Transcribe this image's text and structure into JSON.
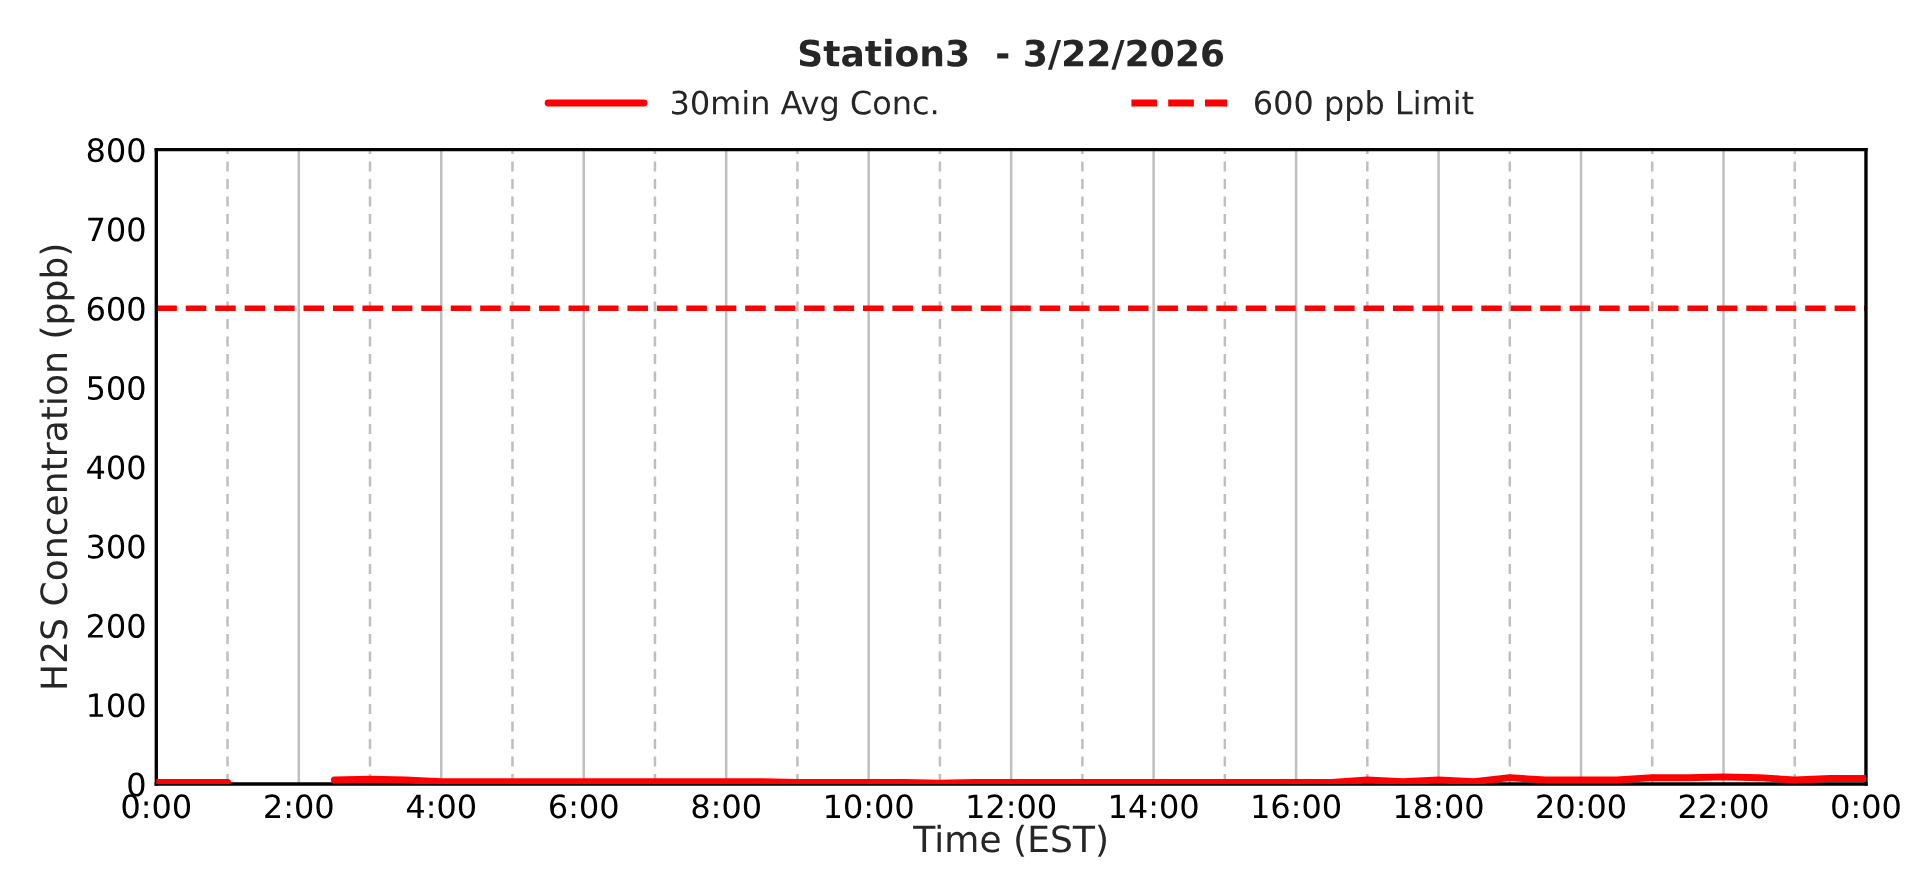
{
  "chart_data": {
    "type": "line",
    "title": "Station3  - 3/22/2026",
    "xlabel": "Time (EST)",
    "ylabel": "H2S Concentration (ppb)",
    "series": [
      {
        "name": "30min Avg Conc.",
        "color": "#ff0000",
        "x": [
          0,
          0.5,
          1,
          1.5,
          2,
          2.5,
          3,
          3.5,
          4,
          4.5,
          5,
          5.5,
          6,
          6.5,
          7,
          7.5,
          8,
          8.5,
          9,
          9.5,
          10,
          10.5,
          11,
          11.5,
          12,
          12.5,
          13,
          13.5,
          14,
          14.5,
          15,
          15.5,
          16,
          16.5,
          17,
          17.5,
          18,
          18.5,
          19,
          19.5,
          20,
          20.5,
          21,
          21.5,
          22,
          22.5,
          23,
          23.5,
          24
        ],
        "values": [
          2,
          2,
          2,
          null,
          null,
          5,
          6,
          5,
          3,
          3,
          3,
          3,
          3,
          3,
          3,
          3,
          3,
          3,
          2,
          2,
          2,
          2,
          1,
          2,
          2,
          2,
          2,
          2,
          2,
          2,
          2,
          2,
          2,
          2,
          5,
          3,
          5,
          3,
          8,
          5,
          5,
          5,
          8,
          8,
          9,
          8,
          5,
          7,
          7
        ]
      }
    ],
    "ref_lines": [
      {
        "axis": "y",
        "value": 600,
        "label": "600 ppb Limit",
        "color": "#ff0000",
        "line_style": "dashed"
      }
    ],
    "xlim": [
      0,
      24
    ],
    "xticks": [
      {
        "value": 0,
        "label": "0:00"
      },
      {
        "value": 1,
        "label": null
      },
      {
        "value": 2,
        "label": "2:00"
      },
      {
        "value": 3,
        "label": null
      },
      {
        "value": 4,
        "label": "4:00"
      },
      {
        "value": 5,
        "label": null
      },
      {
        "value": 6,
        "label": "6:00"
      },
      {
        "value": 7,
        "label": null
      },
      {
        "value": 8,
        "label": "8:00"
      },
      {
        "value": 9,
        "label": null
      },
      {
        "value": 10,
        "label": "10:00"
      },
      {
        "value": 11,
        "label": null
      },
      {
        "value": 12,
        "label": "12:00"
      },
      {
        "value": 13,
        "label": null
      },
      {
        "value": 14,
        "label": "14:00"
      },
      {
        "value": 15,
        "label": null
      },
      {
        "value": 16,
        "label": "16:00"
      },
      {
        "value": 17,
        "label": null
      },
      {
        "value": 18,
        "label": "18:00"
      },
      {
        "value": 19,
        "label": null
      },
      {
        "value": 20,
        "label": "20:00"
      },
      {
        "value": 21,
        "label": null
      },
      {
        "value": 22,
        "label": "22:00"
      },
      {
        "value": 23,
        "label": null
      },
      {
        "value": 24,
        "label": "0:00"
      }
    ],
    "ylim": [
      0,
      800
    ],
    "yticks": [
      0,
      100,
      200,
      300,
      400,
      500,
      600,
      700,
      800
    ],
    "grid": "x",
    "legend": "top",
    "line_style": "solid",
    "marker": "none"
  }
}
